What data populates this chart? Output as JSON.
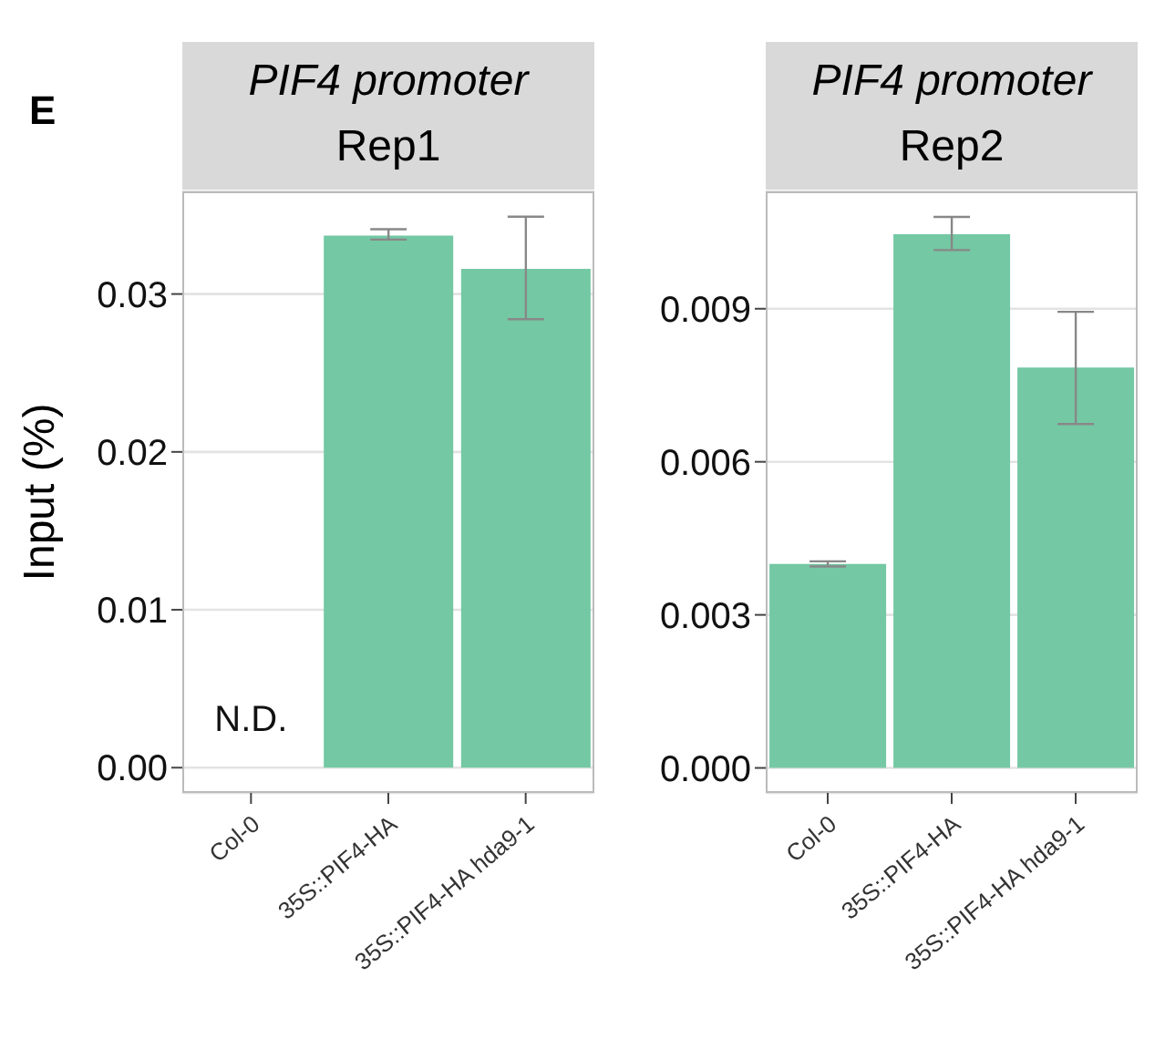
{
  "chart_data": [
    {
      "type": "bar",
      "title": "PIF4 promoter",
      "subtitle": "Rep1",
      "ylabel": "Input (%)",
      "categories": [
        "Col-0",
        "35S::PIF4-HA",
        "35S::PIF4-HA hda9-1"
      ],
      "values": [
        0,
        0.0337,
        0.0316
      ],
      "errors": [
        null,
        [
          0.03345,
          0.0341
        ],
        [
          0.0284,
          0.0349
        ]
      ],
      "color": "#74c8a4",
      "ylim": [
        -0.0016,
        0.0365
      ],
      "yticks": [
        {
          "value": 0,
          "label": "0.00"
        },
        0.01,
        0.02,
        0.03
      ],
      "grid": "y",
      "annotations": [
        "E",
        {
          "text": "N.D.",
          "x": "Col-0",
          "y": 0
        }
      ]
    },
    {
      "type": "bar",
      "title": "PIF4 promoter",
      "subtitle": "Rep2",
      "categories": [
        "Col-0",
        "35S::PIF4-HA",
        "35S::PIF4-HA hda9-1"
      ],
      "values": [
        0.004,
        0.01046,
        0.00785
      ],
      "errors": [
        [
          0.00395,
          0.00405
        ],
        [
          0.01015,
          0.0108
        ],
        [
          0.00674,
          0.00894
        ]
      ],
      "color": "#74c8a4",
      "ylim": [
        -0.00049,
        0.0113
      ],
      "yticks": [
        {
          "value": 0,
          "label": "0.000"
        },
        0.003,
        0.006,
        0.009
      ],
      "grid": "y"
    }
  ]
}
